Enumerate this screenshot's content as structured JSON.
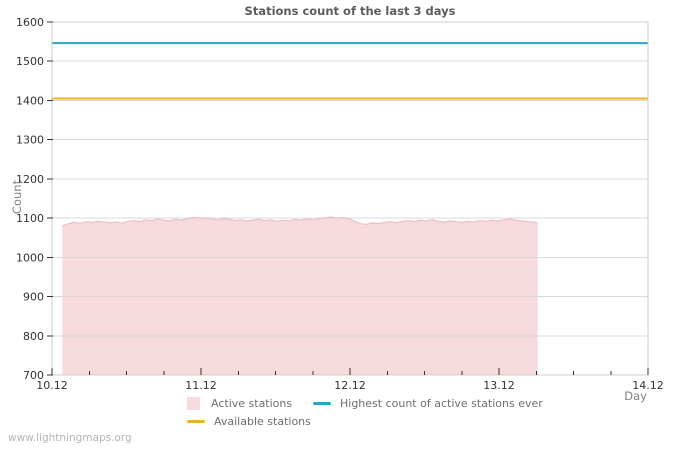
{
  "page": {
    "watermark": "www.lightningmaps.org"
  },
  "chart_data": {
    "type": "area",
    "title": "Stations count of the last 3 days",
    "xlabel": "Day",
    "ylabel": "Count",
    "ylim": [
      700,
      1600
    ],
    "y_tick_step": 100,
    "xlim_days": [
      0,
      4
    ],
    "x_minor_step_days": 0.25,
    "grid": "horizontal",
    "legend_position": "bottom",
    "x_ticks": [
      {
        "pos": 0,
        "label": "10.12"
      },
      {
        "pos": 1,
        "label": "11.12"
      },
      {
        "pos": 2,
        "label": "12.12"
      },
      {
        "pos": 3,
        "label": "13.12"
      },
      {
        "pos": 4,
        "label": "14.12"
      }
    ],
    "colors": {
      "grid": "#d8d8d8",
      "frame": "#cccccc",
      "tick": "#333333"
    },
    "series": [
      {
        "name": "Active stations",
        "type": "area",
        "fill": "#f6dadc",
        "edge": "#e6bcc1",
        "x_days": [
          0.07,
          0.11,
          0.15,
          0.19,
          0.23,
          0.27,
          0.31,
          0.35,
          0.39,
          0.43,
          0.47,
          0.51,
          0.55,
          0.59,
          0.63,
          0.67,
          0.71,
          0.75,
          0.79,
          0.83,
          0.87,
          0.91,
          0.95,
          0.99,
          1.03,
          1.07,
          1.11,
          1.15,
          1.19,
          1.23,
          1.27,
          1.31,
          1.35,
          1.39,
          1.43,
          1.47,
          1.51,
          1.55,
          1.59,
          1.63,
          1.67,
          1.71,
          1.75,
          1.79,
          1.83,
          1.87,
          1.91,
          1.95,
          1.99,
          2.03,
          2.07,
          2.11,
          2.15,
          2.19,
          2.23,
          2.27,
          2.31,
          2.35,
          2.39,
          2.43,
          2.47,
          2.51,
          2.55,
          2.59,
          2.63,
          2.67,
          2.71,
          2.75,
          2.79,
          2.83,
          2.87,
          2.91,
          2.95,
          2.99,
          3.03,
          3.07,
          3.11,
          3.15,
          3.19,
          3.23,
          3.26
        ],
        "values": [
          1080,
          1086,
          1089,
          1087,
          1091,
          1089,
          1092,
          1090,
          1088,
          1090,
          1087,
          1092,
          1094,
          1091,
          1096,
          1094,
          1098,
          1095,
          1093,
          1097,
          1095,
          1099,
          1102,
          1100,
          1101,
          1098,
          1096,
          1099,
          1097,
          1094,
          1096,
          1093,
          1095,
          1097,
          1094,
          1096,
          1092,
          1095,
          1093,
          1097,
          1095,
          1098,
          1096,
          1099,
          1101,
          1103,
          1100,
          1102,
          1099,
          1092,
          1086,
          1084,
          1088,
          1086,
          1089,
          1091,
          1088,
          1092,
          1094,
          1091,
          1095,
          1093,
          1096,
          1092,
          1090,
          1093,
          1091,
          1089,
          1092,
          1090,
          1094,
          1092,
          1095,
          1093,
          1096,
          1098,
          1095,
          1093,
          1091,
          1090,
          1087
        ]
      },
      {
        "name": "Available stations",
        "type": "hline",
        "color": "#edb21f",
        "value": 1405
      },
      {
        "name": "Highest count of active stations ever",
        "type": "hline",
        "color": "#2aa5c4",
        "value": 1546
      }
    ]
  }
}
